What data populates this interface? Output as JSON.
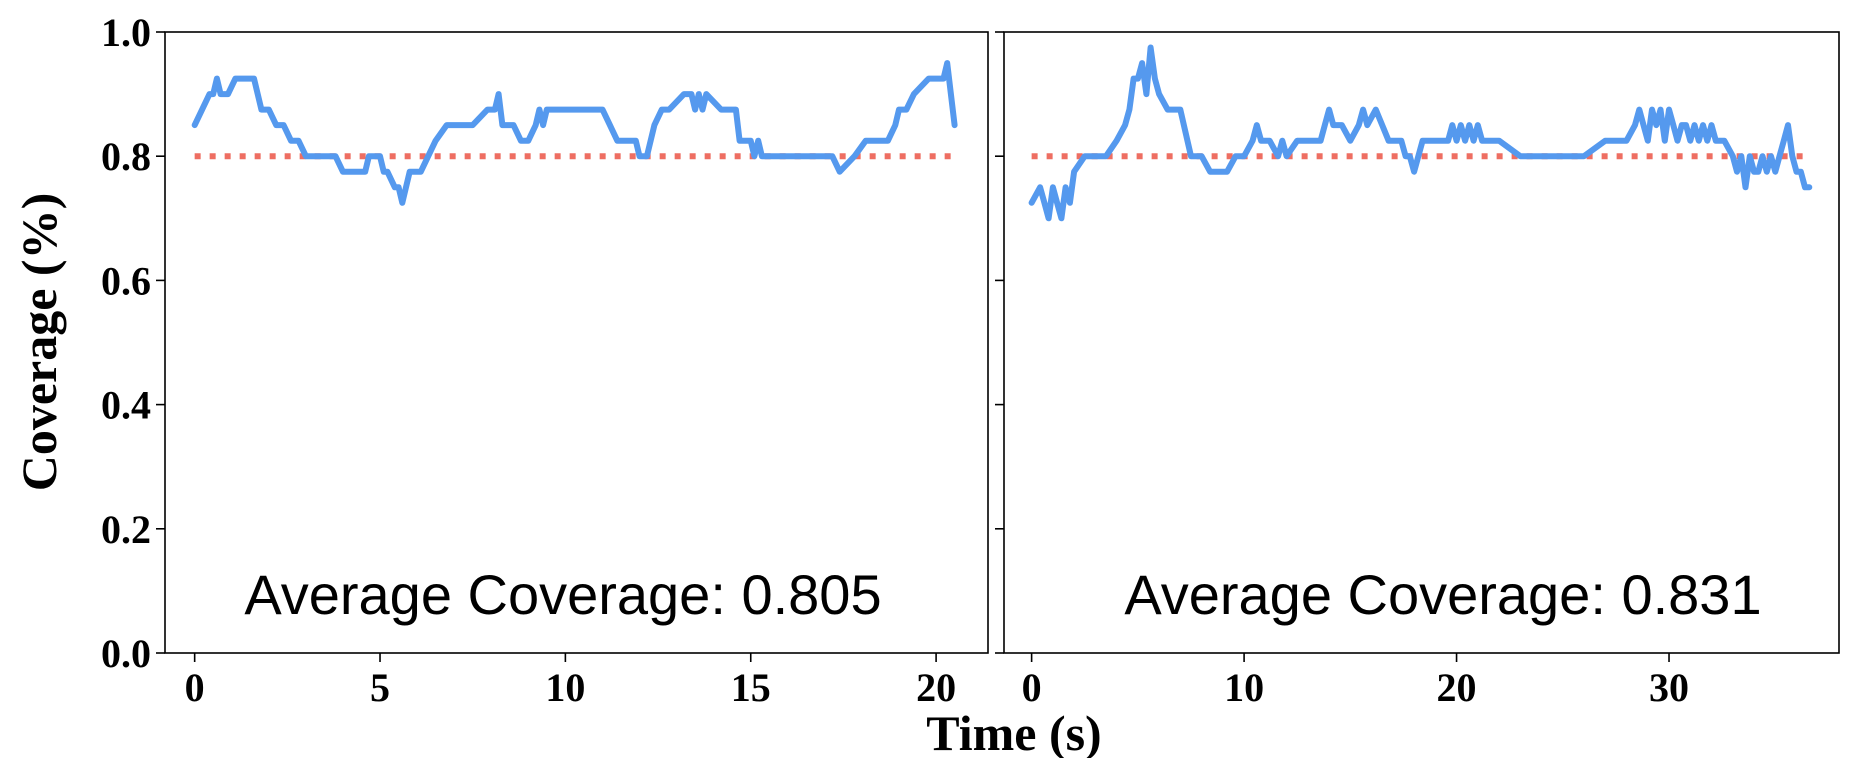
{
  "figure": {
    "xlabel": "Time (s)",
    "ylabel": "Coverage (%)"
  },
  "chart_data": [
    {
      "type": "line",
      "panel": "left",
      "xlim": [
        -0.8,
        21.4
      ],
      "ylim": [
        0.0,
        1.0
      ],
      "xticks": [
        0,
        5,
        10,
        15,
        20
      ],
      "yticks": [
        0.0,
        0.2,
        0.4,
        0.6,
        0.8,
        1.0
      ],
      "annotation": "Average Coverage: 0.805",
      "grid": false,
      "colors": {
        "coverage": "#5599ee",
        "target": "#ee6e62"
      },
      "target_line": {
        "y": 0.8,
        "x": [
          0,
          20.5
        ],
        "style": "dotted"
      },
      "series": [
        {
          "x": [
            0,
            0.2,
            0.4,
            0.5,
            0.6,
            0.7,
            0.8,
            0.9,
            1.1,
            1.2,
            1.3,
            1.4,
            1.6,
            1.7,
            1.8,
            2.0,
            2.2,
            2.4,
            2.6,
            2.8,
            3.0,
            3.5,
            3.8,
            4.0,
            4.2,
            4.6,
            4.7,
            4.9,
            5.0,
            5.1,
            5.2,
            5.4,
            5.5,
            5.6,
            5.8,
            6.1,
            6.3,
            6.5,
            6.8,
            7.0,
            7.5,
            7.9,
            8.0,
            8.1,
            8.2,
            8.3,
            8.6,
            8.8,
            8.9,
            9.0,
            9.2,
            9.3,
            9.4,
            9.5,
            9.6,
            9.8,
            10.0,
            11.0,
            11.2,
            11.4,
            11.9,
            12.0,
            12.2,
            12.4,
            12.6,
            12.8,
            13.2,
            13.4,
            13.5,
            13.6,
            13.7,
            13.8,
            14.2,
            14.6,
            14.7,
            15.0,
            15.1,
            15.2,
            15.3,
            15.4,
            16.0,
            16.5,
            17.0,
            17.2,
            17.4,
            17.8,
            18.1,
            18.5,
            18.7,
            18.9,
            19.0,
            19.2,
            19.4,
            19.8,
            20.1,
            20.2,
            20.3,
            20.5
          ],
          "y": [
            0.85,
            0.875,
            0.9,
            0.9,
            0.925,
            0.9,
            0.9,
            0.9,
            0.925,
            0.925,
            0.925,
            0.925,
            0.925,
            0.9,
            0.875,
            0.875,
            0.85,
            0.85,
            0.825,
            0.825,
            0.8,
            0.8,
            0.8,
            0.775,
            0.775,
            0.775,
            0.8,
            0.8,
            0.8,
            0.775,
            0.775,
            0.75,
            0.75,
            0.725,
            0.775,
            0.775,
            0.8,
            0.825,
            0.85,
            0.85,
            0.85,
            0.875,
            0.875,
            0.875,
            0.9,
            0.85,
            0.85,
            0.825,
            0.825,
            0.825,
            0.85,
            0.875,
            0.85,
            0.875,
            0.875,
            0.875,
            0.875,
            0.875,
            0.85,
            0.825,
            0.825,
            0.8,
            0.8,
            0.85,
            0.875,
            0.875,
            0.9,
            0.9,
            0.875,
            0.9,
            0.875,
            0.9,
            0.875,
            0.875,
            0.825,
            0.825,
            0.8,
            0.825,
            0.8,
            0.8,
            0.8,
            0.8,
            0.8,
            0.8,
            0.775,
            0.8,
            0.825,
            0.825,
            0.825,
            0.85,
            0.875,
            0.875,
            0.9,
            0.925,
            0.925,
            0.925,
            0.95,
            0.85
          ]
        },
        {
          "x": [
            0,
            20.5
          ],
          "y": [
            0.8,
            0.8
          ]
        }
      ]
    },
    {
      "type": "line",
      "panel": "right",
      "xlim": [
        -1.3,
        38.0
      ],
      "ylim": [
        0.0,
        1.0
      ],
      "xticks": [
        0,
        10,
        20,
        30
      ],
      "yticks": [
        0.0,
        0.2,
        0.4,
        0.6,
        0.8,
        1.0
      ],
      "annotation": "Average Coverage: 0.831",
      "grid": false,
      "colors": {
        "coverage": "#5599ee",
        "target": "#ee6e62"
      },
      "target_line": {
        "y": 0.8,
        "x": [
          0,
          36.5
        ],
        "style": "dotted"
      },
      "series": [
        {
          "x": [
            0,
            0.4,
            0.6,
            0.8,
            1.0,
            1.2,
            1.4,
            1.6,
            1.8,
            2.0,
            2.5,
            3.0,
            3.5,
            4.0,
            4.4,
            4.6,
            4.8,
            5.0,
            5.2,
            5.4,
            5.6,
            5.8,
            6.0,
            6.4,
            7.0,
            7.5,
            8.0,
            8.4,
            8.8,
            9.2,
            9.6,
            10.0,
            10.4,
            10.6,
            10.8,
            11.2,
            11.6,
            11.8,
            12.0,
            12.5,
            13.0,
            13.6,
            13.8,
            14.0,
            14.2,
            14.6,
            15.0,
            15.4,
            15.6,
            15.8,
            16.2,
            16.5,
            16.8,
            17.4,
            17.6,
            17.8,
            18.0,
            18.4,
            19.0,
            19.6,
            19.8,
            20.0,
            20.2,
            20.4,
            20.6,
            20.8,
            21.0,
            21.2,
            22.0,
            23.0,
            24.0,
            25.0,
            26.0,
            27.0,
            28.0,
            28.4,
            28.6,
            28.8,
            29.0,
            29.2,
            29.4,
            29.6,
            29.8,
            30.0,
            30.2,
            30.4,
            30.6,
            30.8,
            31.0,
            31.2,
            31.4,
            31.6,
            31.8,
            32.0,
            32.2,
            32.6,
            33.0,
            33.2,
            33.4,
            33.6,
            33.8,
            34.0,
            34.2,
            34.4,
            34.6,
            34.8,
            35.0,
            35.2,
            35.4,
            35.6,
            35.8,
            36.0,
            36.2,
            36.4,
            36.6
          ],
          "y": [
            0.725,
            0.75,
            0.725,
            0.7,
            0.75,
            0.725,
            0.7,
            0.75,
            0.725,
            0.775,
            0.8,
            0.8,
            0.8,
            0.825,
            0.85,
            0.875,
            0.925,
            0.925,
            0.95,
            0.9,
            0.975,
            0.925,
            0.9,
            0.875,
            0.875,
            0.8,
            0.8,
            0.775,
            0.775,
            0.775,
            0.8,
            0.8,
            0.825,
            0.85,
            0.825,
            0.825,
            0.8,
            0.825,
            0.8,
            0.825,
            0.825,
            0.825,
            0.85,
            0.875,
            0.85,
            0.85,
            0.825,
            0.85,
            0.875,
            0.85,
            0.875,
            0.85,
            0.825,
            0.825,
            0.8,
            0.8,
            0.775,
            0.825,
            0.825,
            0.825,
            0.85,
            0.825,
            0.85,
            0.825,
            0.85,
            0.825,
            0.85,
            0.825,
            0.825,
            0.8,
            0.8,
            0.8,
            0.8,
            0.825,
            0.825,
            0.85,
            0.875,
            0.85,
            0.825,
            0.875,
            0.85,
            0.875,
            0.825,
            0.875,
            0.85,
            0.825,
            0.85,
            0.85,
            0.825,
            0.85,
            0.825,
            0.85,
            0.825,
            0.85,
            0.825,
            0.825,
            0.8,
            0.775,
            0.8,
            0.75,
            0.8,
            0.775,
            0.775,
            0.8,
            0.775,
            0.8,
            0.775,
            0.8,
            0.825,
            0.85,
            0.8,
            0.775,
            0.775,
            0.75,
            0.75
          ]
        },
        {
          "x": [
            0,
            36.5
          ],
          "y": [
            0.8,
            0.8
          ]
        }
      ]
    }
  ]
}
